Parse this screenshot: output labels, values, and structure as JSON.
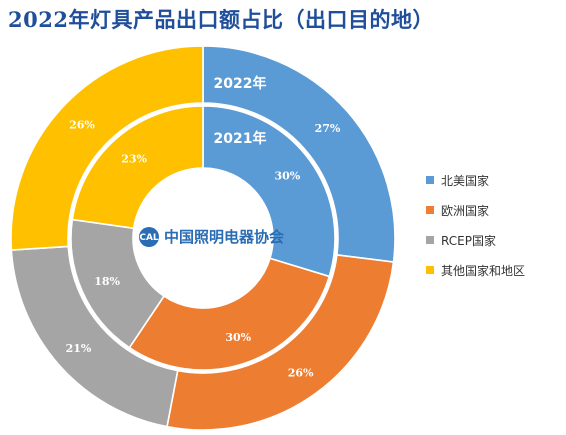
{
  "page": {
    "title": "2022年灯具产品出口额占比（出口目的地）"
  },
  "chart_data": {
    "type": "pie",
    "categories": [
      "北美国家",
      "欧洲国家",
      "RCEP国家",
      "其他国家和地区"
    ],
    "colors": [
      "#5b9bd5",
      "#ed7d31",
      "#a5a5a5",
      "#ffc000"
    ],
    "series": [
      {
        "name": "2022年",
        "ring": "outer",
        "values": [
          27,
          26,
          21,
          26
        ],
        "labels": [
          "27%",
          "26%",
          "21%",
          "26%"
        ]
      },
      {
        "name": "2021年",
        "ring": "inner",
        "values": [
          30,
          30,
          18,
          23
        ],
        "labels": [
          "30%",
          "30%",
          "18%",
          "23%"
        ]
      }
    ],
    "legend_position": "right"
  },
  "logo": {
    "mark": "CAL",
    "text": "中国照明电器协会"
  }
}
